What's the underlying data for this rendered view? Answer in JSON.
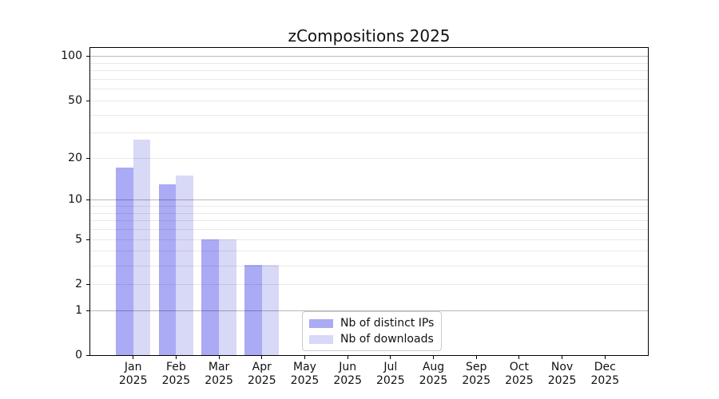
{
  "chart_data": {
    "type": "bar",
    "title": "zCompositions 2025",
    "categories": [
      "Jan",
      "Feb",
      "Mar",
      "Apr",
      "May",
      "Jun",
      "Jul",
      "Aug",
      "Sep",
      "Oct",
      "Nov",
      "Dec"
    ],
    "year_label": "2025",
    "series": [
      {
        "name": "Nb of distinct IPs",
        "color": "#aaaaf5",
        "values": [
          17,
          13,
          5,
          3,
          0,
          0,
          0,
          0,
          0,
          0,
          0,
          0
        ]
      },
      {
        "name": "Nb of downloads",
        "color": "#d8d8f7",
        "values": [
          27,
          15,
          5,
          3,
          0,
          0,
          0,
          0,
          0,
          0,
          0,
          0
        ]
      }
    ],
    "y_axis": {
      "scale": "log1p",
      "tick_labels": [
        0,
        1,
        2,
        5,
        10,
        20,
        50,
        100
      ],
      "major_gridlines": [
        1,
        10,
        100
      ],
      "minor_gridlines": [
        2,
        3,
        4,
        5,
        6,
        7,
        8,
        9,
        20,
        30,
        40,
        50,
        60,
        70,
        80,
        90
      ],
      "top_value": 113
    },
    "legend_position": "lower center (inside plot)",
    "grid": "horizontal, drawn above bars"
  }
}
